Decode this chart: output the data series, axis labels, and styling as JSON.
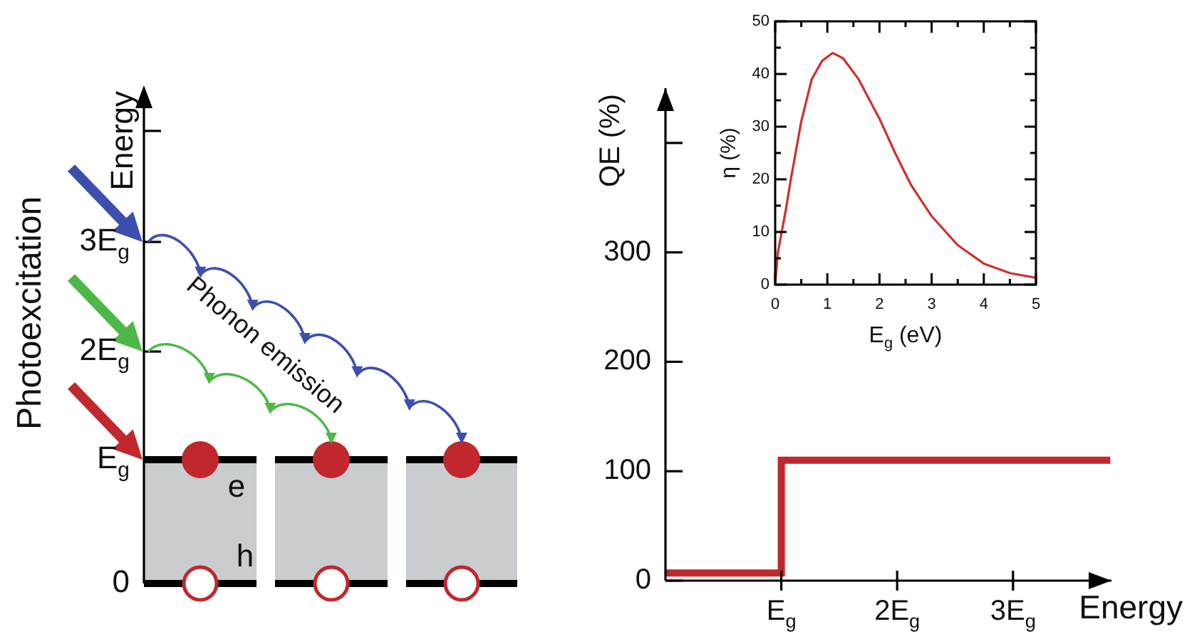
{
  "chart_data": [
    {
      "type": "other",
      "ylabel": "Energy",
      "annotations": [
        "Photoexcitation",
        "Phonon emission",
        "e",
        "h",
        "0",
        "E$_{g}$",
        "2E$_{g}$",
        "3E$_{g}$"
      ]
    },
    {
      "type": "step",
      "xlabel": "Energy",
      "ylabel": "QE (%)",
      "xlim": [
        0,
        3.85
      ],
      "xticks": [
        {
          "value": 1,
          "label": "E$_{g}$"
        },
        {
          "value": 2,
          "label": "2E$_{g}$"
        },
        {
          "value": 3,
          "label": "3E$_{g}$"
        }
      ],
      "ylim": [
        0,
        450
      ],
      "yticks": [
        0,
        100,
        200,
        300,
        {
          "value": 400,
          "label": null
        }
      ],
      "x": [
        0,
        1,
        3.84
      ],
      "values": [
        7,
        110,
        110
      ],
      "color": "#c0282d"
    },
    {
      "type": "line",
      "xlabel": "E$_{g}$ (eV)",
      "ylabel": "η (%)",
      "xlim": [
        0,
        5
      ],
      "xticks": [
        0,
        {
          "value": 0.5,
          "label": null
        },
        1,
        {
          "value": 1.5,
          "label": null
        },
        2,
        {
          "value": 2.5,
          "label": null
        },
        3,
        {
          "value": 3.5,
          "label": null
        },
        4,
        {
          "value": 4.5,
          "label": null
        },
        5
      ],
      "ylim": [
        0,
        50
      ],
      "yticks": [
        0,
        {
          "value": 5,
          "label": null
        },
        10,
        {
          "value": 15,
          "label": null
        },
        20,
        {
          "value": 25,
          "label": null
        },
        30,
        {
          "value": 35,
          "label": null
        },
        40,
        {
          "value": 45,
          "label": null
        },
        50
      ],
      "x": [
        0,
        0.05,
        0.2,
        0.3,
        0.5,
        0.7,
        0.9,
        1.1,
        1.3,
        1.6,
        2,
        2.3,
        2.6,
        3,
        3.5,
        4,
        4.5,
        5
      ],
      "values": [
        0,
        6,
        14,
        20,
        31,
        39,
        42.5,
        44,
        43,
        39,
        31.5,
        25,
        19,
        13,
        7.5,
        4,
        2.2,
        1.3
      ],
      "color": "#d0302c"
    }
  ]
}
